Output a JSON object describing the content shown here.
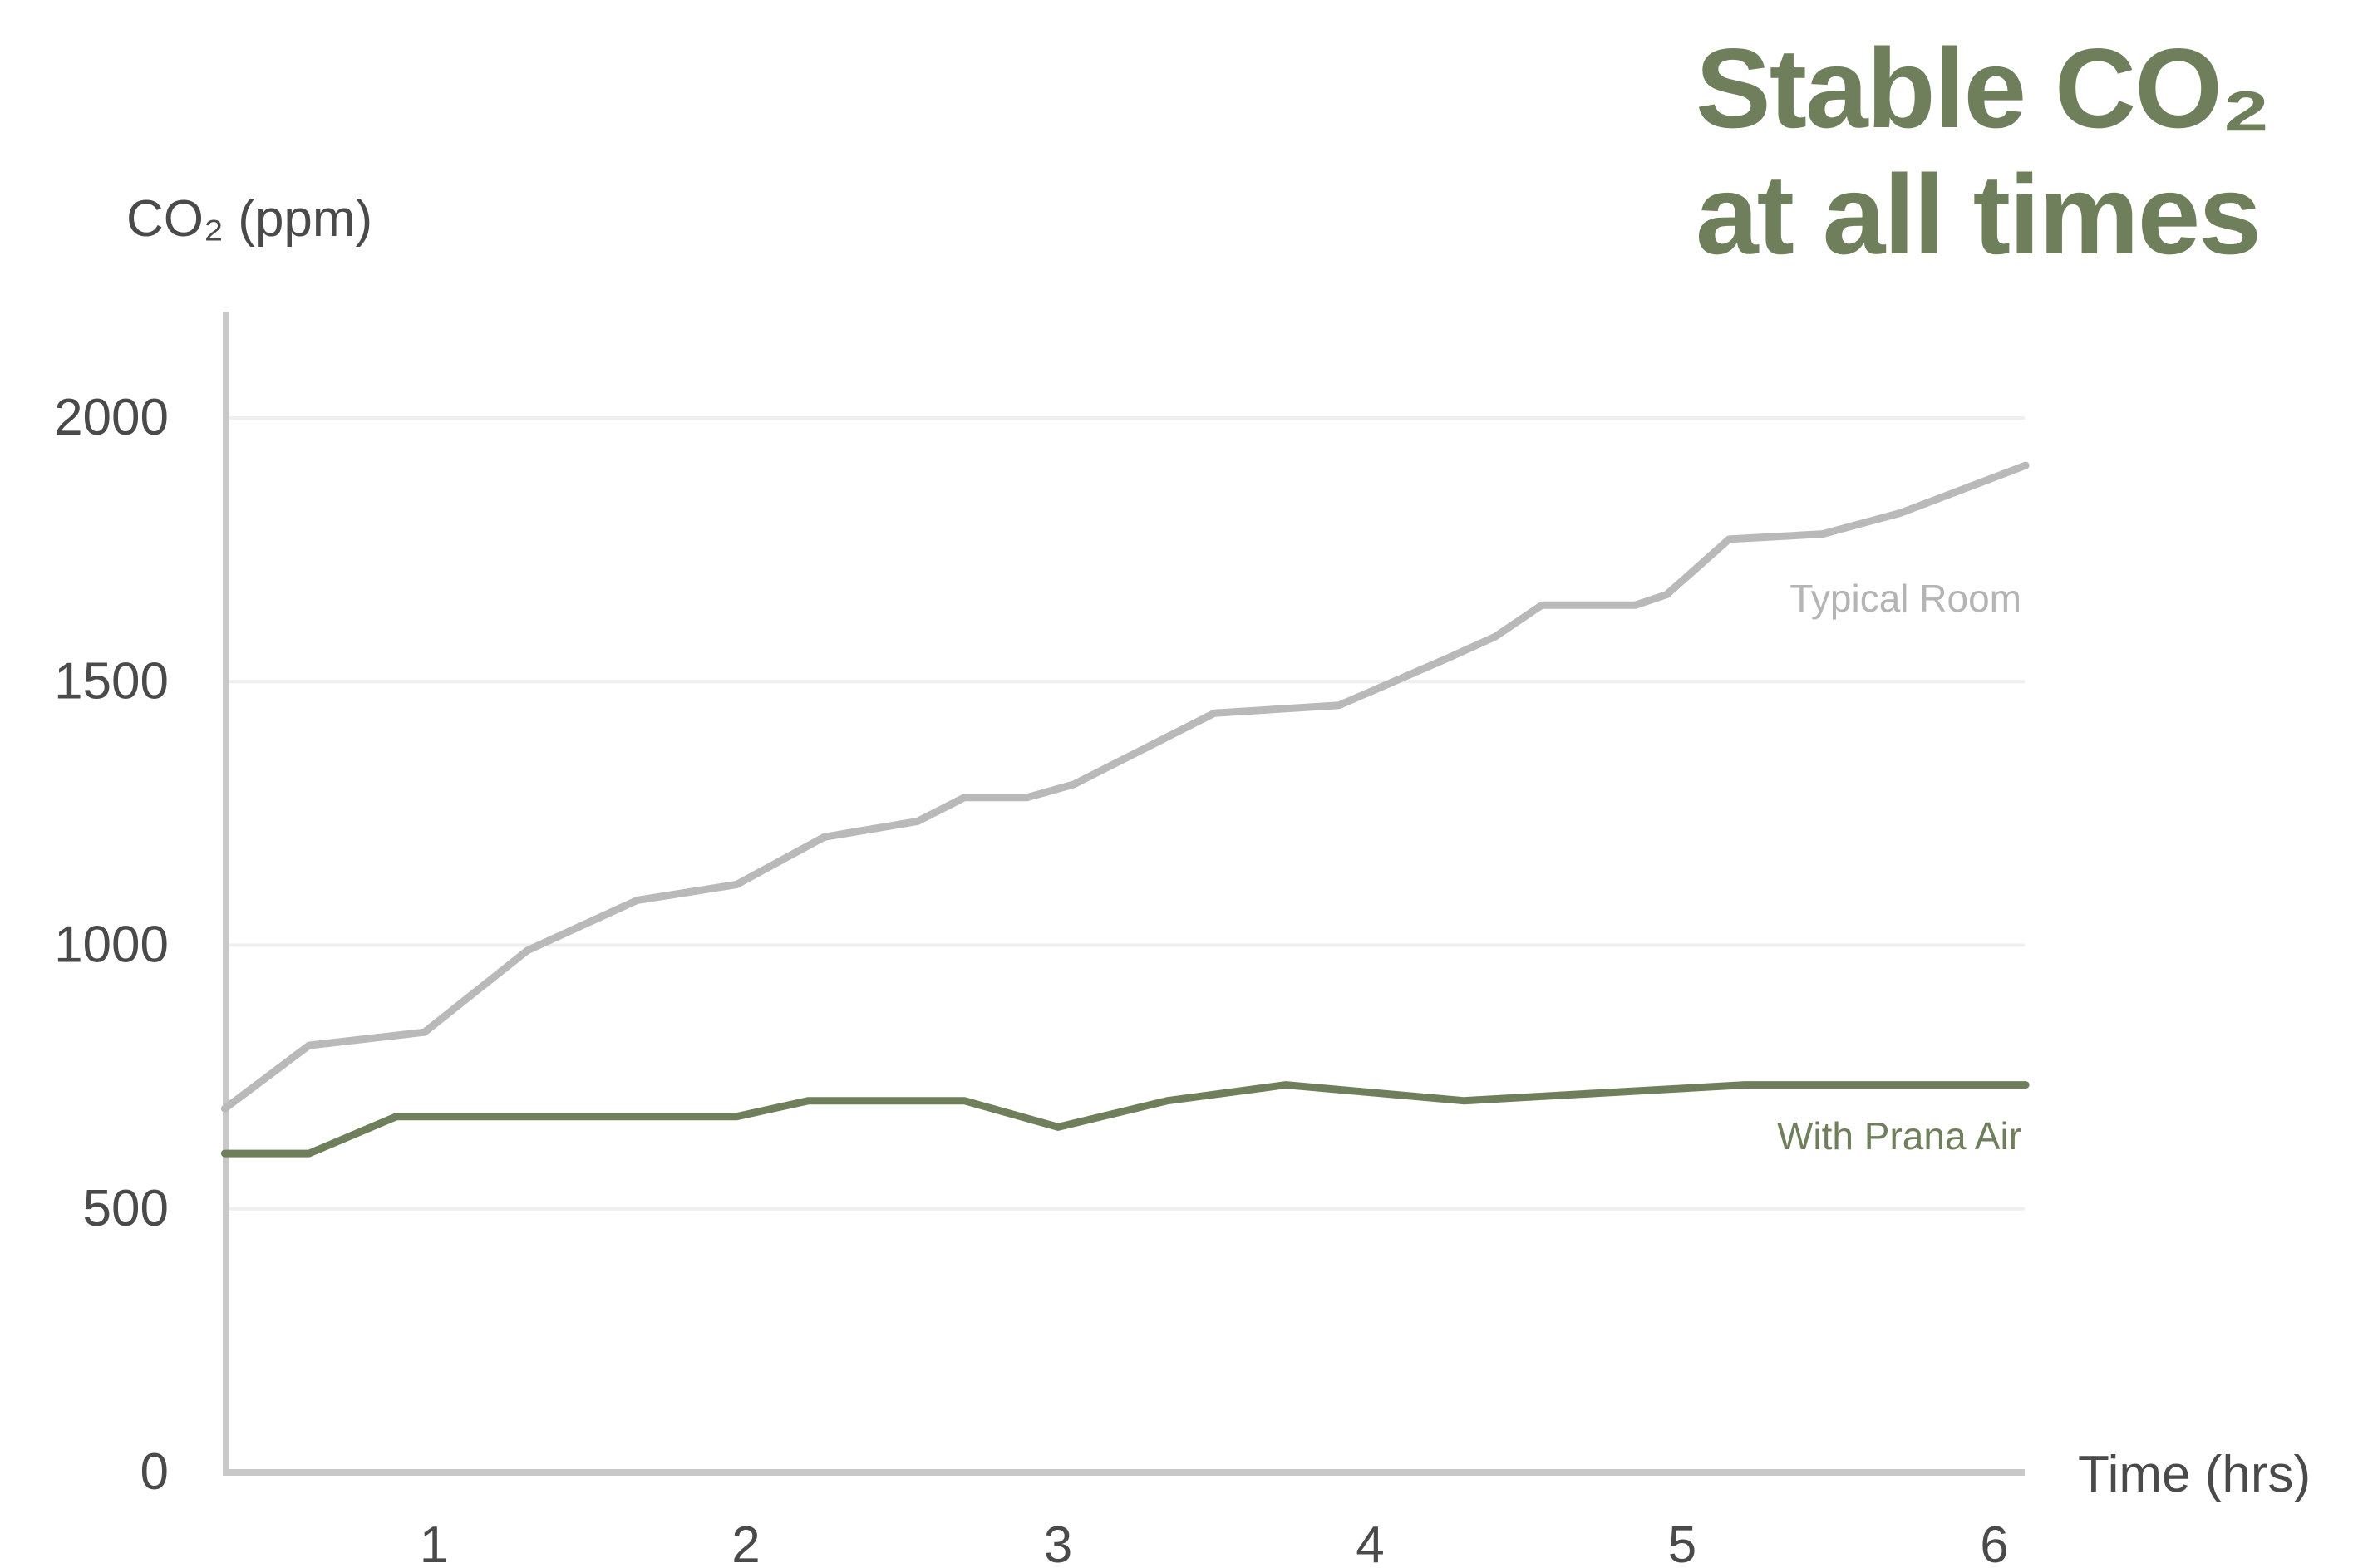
{
  "headline": {
    "line1": "Stable CO₂",
    "line2": "at all times"
  },
  "colors": {
    "headline": "#6f7f5c",
    "typical_room": "#b9b9b9",
    "with_prana_air": "#6f7f5c",
    "axis": "#c8c8c8",
    "grid": "#efefef",
    "tick_label": "#4a4a4a"
  },
  "chart_data": {
    "type": "line",
    "title": "",
    "xlabel": "Time (hrs)",
    "ylabel": "CO₂ (ppm)",
    "xlim": [
      0.33,
      6.1
    ],
    "ylim": [
      0,
      2200
    ],
    "x_ticks": [
      1,
      2,
      3,
      4,
      5,
      6
    ],
    "y_ticks": [
      0,
      500,
      1000,
      1500,
      2000
    ],
    "grid": true,
    "legend": "inline labels at right end of lines",
    "series": [
      {
        "name": "Typical Room",
        "points": [
          [
            0.33,
            690
          ],
          [
            0.6,
            810
          ],
          [
            0.97,
            835
          ],
          [
            1.3,
            990
          ],
          [
            1.65,
            1085
          ],
          [
            1.97,
            1115
          ],
          [
            2.25,
            1205
          ],
          [
            2.55,
            1235
          ],
          [
            2.7,
            1280
          ],
          [
            2.9,
            1280
          ],
          [
            3.05,
            1305
          ],
          [
            3.5,
            1440
          ],
          [
            3.9,
            1455
          ],
          [
            4.25,
            1545
          ],
          [
            4.4,
            1585
          ],
          [
            4.55,
            1645
          ],
          [
            4.85,
            1645
          ],
          [
            4.95,
            1665
          ],
          [
            5.15,
            1770
          ],
          [
            5.45,
            1780
          ],
          [
            5.7,
            1820
          ],
          [
            6.1,
            1910
          ]
        ]
      },
      {
        "name": "With Prana Air",
        "points": [
          [
            0.33,
            605
          ],
          [
            0.6,
            605
          ],
          [
            0.88,
            675
          ],
          [
            1.97,
            675
          ],
          [
            2.2,
            705
          ],
          [
            2.7,
            705
          ],
          [
            3.0,
            655
          ],
          [
            3.35,
            705
          ],
          [
            3.73,
            735
          ],
          [
            4.3,
            705
          ],
          [
            5.2,
            735
          ],
          [
            6.1,
            735
          ]
        ]
      }
    ]
  }
}
